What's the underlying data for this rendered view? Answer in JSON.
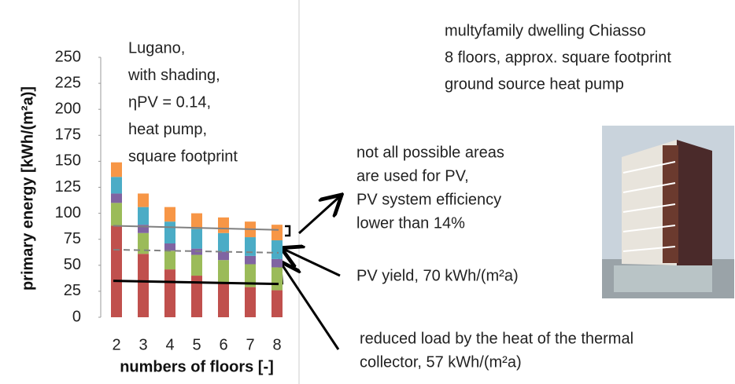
{
  "chart_data": {
    "type": "bar",
    "stacked": true,
    "y_label": "primary energy   [kWh/(m²a)]",
    "x_label": "numbers of floors   [-]",
    "categories": [
      "2",
      "3",
      "4",
      "5",
      "6",
      "7",
      "8"
    ],
    "series": [
      {
        "color": "#c0504d",
        "values": [
          88,
          61,
          46,
          40,
          33,
          29,
          26
        ]
      },
      {
        "color": "#9bbb59",
        "values": [
          22,
          20,
          18,
          20,
          22,
          22,
          22
        ]
      },
      {
        "color": "#8064a2",
        "values": [
          9,
          8,
          7,
          6,
          8,
          8,
          8
        ]
      },
      {
        "color": "#4bacc6",
        "values": [
          16,
          17,
          21,
          19,
          18,
          18,
          18
        ]
      },
      {
        "color": "#f79646",
        "values": [
          14,
          13,
          14,
          15,
          15,
          15,
          15
        ]
      }
    ],
    "lines": [
      {
        "color": "#808080",
        "dash": false,
        "values": [
          88,
          84
        ]
      },
      {
        "color": "#808080",
        "dash": true,
        "values": [
          65,
          62
        ]
      },
      {
        "color": "#000000",
        "dash": false,
        "values": [
          35,
          32
        ]
      }
    ],
    "ylim": [
      0,
      250
    ],
    "yticks": [
      0,
      25,
      50,
      75,
      100,
      125,
      150,
      175,
      200,
      225,
      250
    ],
    "inset_lines": [
      "Lugano,",
      "with shading,",
      " ηPV = 0.14,",
      "heat pump,",
      "square footprint"
    ]
  },
  "description": {
    "lines": [
      "multyfamily dwelling Chiasso",
      "8 floors, approx. square footprint",
      "ground source heat pump"
    ]
  },
  "annotations": {
    "efficiency": [
      "not all possible areas",
      "are used for PV,",
      "PV system efficiency",
      "lower than 14%"
    ],
    "pv_yield": "PV yield, 70 kWh/(m²a)",
    "collector": [
      "reduced load by the heat of the thermal",
      "collector, 57 kWh/(m²a)"
    ]
  }
}
